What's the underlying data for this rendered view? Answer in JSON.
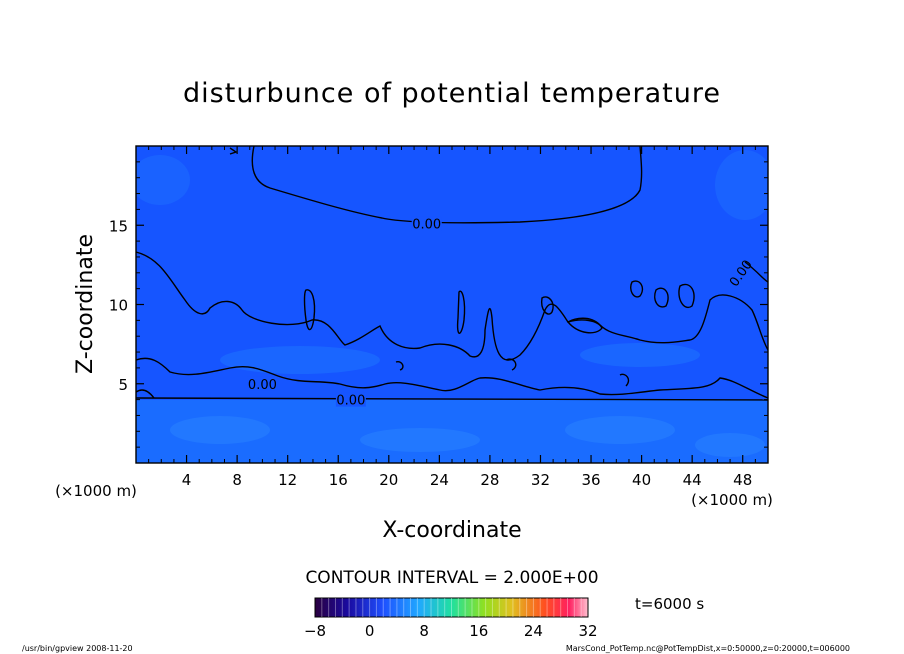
{
  "chart_data": {
    "type": "contour",
    "title": "disturbunce of potential temperature",
    "xlabel": "X-coordinate",
    "ylabel": "Z-coordinate",
    "x_unit_label": "(×1000 m)",
    "y_unit_label": "(×1000 m)",
    "xlim": [
      0,
      50
    ],
    "ylim": [
      0,
      20
    ],
    "x_ticks": [
      4,
      8,
      12,
      16,
      20,
      24,
      28,
      32,
      36,
      40,
      44,
      48
    ],
    "y_ticks": [
      5,
      10,
      15
    ],
    "contour_labels": [
      {
        "text": "0.00",
        "x": 23.0,
        "z": 15.1
      },
      {
        "text": "0.00",
        "x": 47.8,
        "z": 12.0
      },
      {
        "text": "0.00",
        "x": 10.0,
        "z": 5.0
      },
      {
        "text": "0.00",
        "x": 17.0,
        "z": 4.0
      }
    ],
    "contour_interval_label": "CONTOUR INTERVAL = 2.000E+00",
    "colorbar": {
      "min": -8,
      "max": 32,
      "ticks": [
        -8,
        0,
        8,
        16,
        24,
        32
      ]
    },
    "time_label": "t=6000 s",
    "footer_left": "/usr/bin/gpview   2008-11-20",
    "footer_right": "MarsCond_PotTemp.nc@PotTempDist,x=0:50000,z=0:20000,t=006000"
  }
}
